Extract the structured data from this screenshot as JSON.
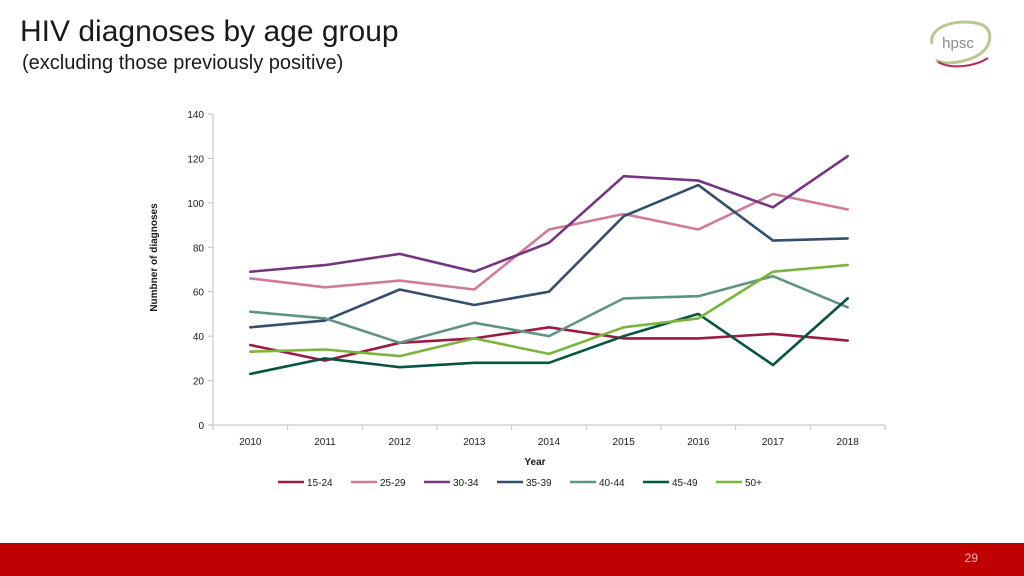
{
  "header": {
    "title": "HIV diagnoses by age group",
    "subtitle": "(excluding those previously positive)",
    "logo_text": "hpsc"
  },
  "chart_data": {
    "type": "line",
    "title": "",
    "xlabel": "Year",
    "ylabel": "Numbner of diagnoses",
    "ylim": [
      0,
      140
    ],
    "yticks": [
      0,
      20,
      40,
      60,
      80,
      100,
      120,
      140
    ],
    "x": [
      "2010",
      "2011",
      "2012",
      "2013",
      "2014",
      "2015",
      "2016",
      "2017",
      "2018"
    ],
    "legend_position": "bottom",
    "series": [
      {
        "name": "15-24",
        "color": "#9b1b45",
        "values": [
          36,
          29,
          37,
          39,
          44,
          39,
          39,
          41,
          38
        ]
      },
      {
        "name": "25-29",
        "color": "#cf7a98",
        "values": [
          66,
          62,
          65,
          61,
          88,
          95,
          88,
          104,
          97
        ]
      },
      {
        "name": "30-34",
        "color": "#74367e",
        "values": [
          69,
          72,
          77,
          69,
          82,
          112,
          110,
          98,
          121
        ]
      },
      {
        "name": "35-39",
        "color": "#344f6e",
        "values": [
          44,
          47,
          61,
          54,
          60,
          94,
          108,
          83,
          84
        ]
      },
      {
        "name": "40-44",
        "color": "#5f9485",
        "values": [
          51,
          48,
          37,
          46,
          40,
          57,
          58,
          67,
          53
        ]
      },
      {
        "name": "45-49",
        "color": "#07553f",
        "values": [
          23,
          30,
          26,
          28,
          28,
          40,
          50,
          27,
          57
        ]
      },
      {
        "name": "50+",
        "color": "#7ab53c",
        "values": [
          33,
          34,
          31,
          39,
          32,
          44,
          48,
          69,
          72
        ]
      }
    ]
  },
  "footer": {
    "page_number": "29",
    "bar_color": "#c00000"
  }
}
